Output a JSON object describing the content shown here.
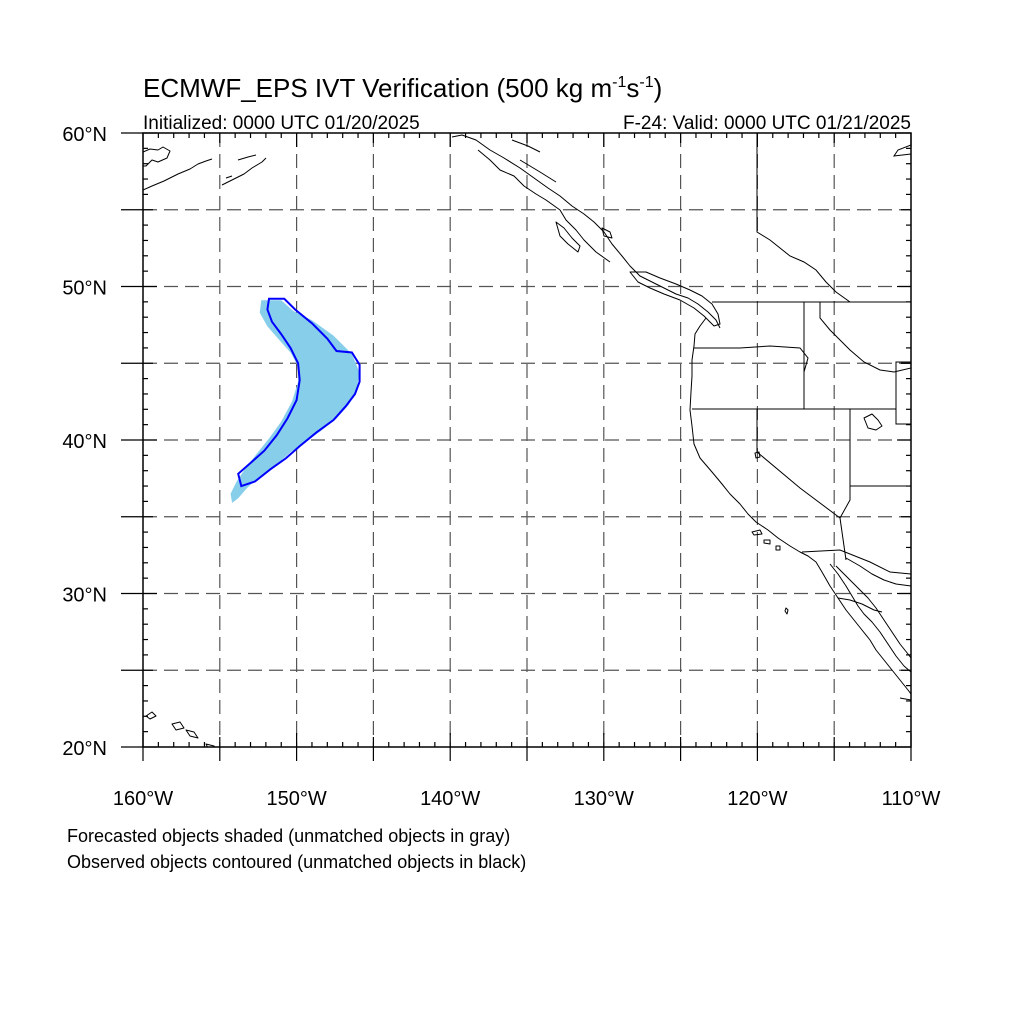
{
  "figure": {
    "title_prefix": "ECMWF_EPS IVT Verification (500 kg m",
    "title_sup1": "-1",
    "title_mid": "s",
    "title_sup2": "-1",
    "title_suffix": ")",
    "init_label": "Initialized: 0000 UTC 01/20/2025",
    "valid_label": "F-24: Valid: 0000 UTC 01/21/2025",
    "caption_line1": "Forecasted objects shaded (unmatched objects in gray)",
    "caption_line2": "Observed objects contoured (unmatched objects in black)"
  },
  "map": {
    "lon_range": [
      -160,
      -110
    ],
    "lat_range": [
      20,
      60
    ],
    "lat_ticks": [
      {
        "value": 20,
        "label": "20°N"
      },
      {
        "value": 30,
        "label": "30°N"
      },
      {
        "value": 40,
        "label": "40°N"
      },
      {
        "value": 50,
        "label": "50°N"
      },
      {
        "value": 60,
        "label": "60°N"
      }
    ],
    "lon_ticks": [
      {
        "value": -160,
        "label": "160°W"
      },
      {
        "value": -150,
        "label": "150°W"
      },
      {
        "value": -140,
        "label": "140°W"
      },
      {
        "value": -130,
        "label": "130°W"
      },
      {
        "value": -120,
        "label": "120°W"
      },
      {
        "value": -110,
        "label": "110°W"
      }
    ],
    "grid_spacing_deg": 5,
    "grid": "dashed",
    "colors": {
      "forecast_fill": "#87ceeb",
      "observed_contour": "#0000ff",
      "coastline": "#000000",
      "grid": "#555555"
    }
  },
  "objects": {
    "forecast": {
      "color": "#87ceeb",
      "outline": [
        [
          -152.3,
          49.1
        ],
        [
          -151.0,
          49.1
        ],
        [
          -150.2,
          48.4
        ],
        [
          -149.0,
          47.8
        ],
        [
          -147.6,
          46.8
        ],
        [
          -146.4,
          45.6
        ],
        [
          -145.9,
          44.4
        ],
        [
          -146.1,
          43.2
        ],
        [
          -146.6,
          42.3
        ],
        [
          -147.4,
          41.4
        ],
        [
          -148.4,
          40.6
        ],
        [
          -149.4,
          39.9
        ],
        [
          -150.4,
          39.2
        ],
        [
          -151.4,
          38.3
        ],
        [
          -152.4,
          37.6
        ],
        [
          -153.2,
          36.9
        ],
        [
          -153.8,
          36.2
        ],
        [
          -154.2,
          35.9
        ],
        [
          -154.3,
          36.5
        ],
        [
          -153.9,
          37.3
        ],
        [
          -153.3,
          38.2
        ],
        [
          -152.6,
          39.1
        ],
        [
          -151.8,
          40.1
        ],
        [
          -151.0,
          41.2
        ],
        [
          -150.3,
          42.5
        ],
        [
          -149.9,
          43.8
        ],
        [
          -149.9,
          44.8
        ],
        [
          -150.4,
          45.7
        ],
        [
          -151.2,
          46.6
        ],
        [
          -151.9,
          47.4
        ],
        [
          -152.4,
          48.3
        ]
      ]
    },
    "observed": {
      "color": "#0000ff",
      "outline": [
        [
          -151.8,
          49.2
        ],
        [
          -150.8,
          49.2
        ],
        [
          -150.1,
          48.5
        ],
        [
          -149.0,
          47.6
        ],
        [
          -148.0,
          46.6
        ],
        [
          -147.4,
          45.8
        ],
        [
          -146.4,
          45.7
        ],
        [
          -145.9,
          44.9
        ],
        [
          -145.9,
          43.8
        ],
        [
          -146.2,
          43.0
        ],
        [
          -146.8,
          42.2
        ],
        [
          -147.6,
          41.3
        ],
        [
          -148.7,
          40.5
        ],
        [
          -149.8,
          39.6
        ],
        [
          -150.7,
          38.8
        ],
        [
          -151.7,
          38.1
        ],
        [
          -152.7,
          37.3
        ],
        [
          -153.6,
          37.0
        ],
        [
          -153.8,
          37.8
        ],
        [
          -153.0,
          38.5
        ],
        [
          -152.1,
          39.3
        ],
        [
          -151.3,
          40.3
        ],
        [
          -150.6,
          41.4
        ],
        [
          -150.0,
          42.6
        ],
        [
          -149.8,
          43.9
        ],
        [
          -149.9,
          45.0
        ],
        [
          -150.4,
          46.0
        ],
        [
          -151.0,
          46.9
        ],
        [
          -151.6,
          47.7
        ],
        [
          -151.9,
          48.5
        ]
      ]
    }
  }
}
